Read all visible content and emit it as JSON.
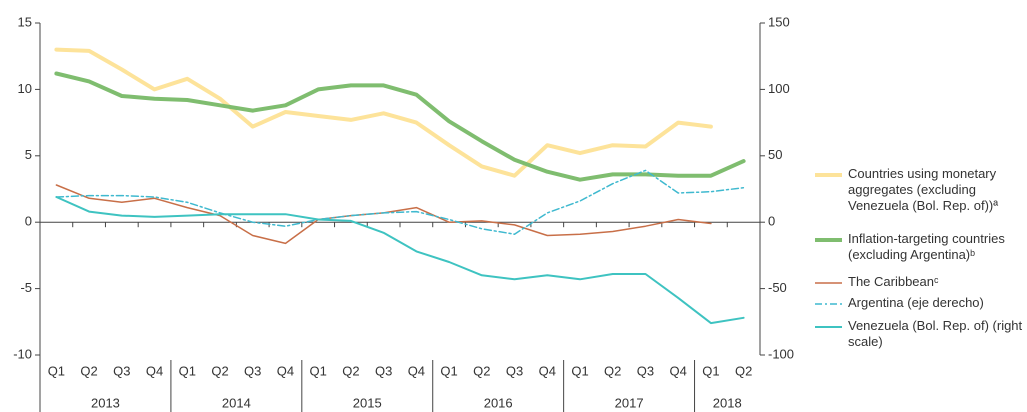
{
  "chart_data": {
    "type": "line",
    "categories": [
      "Q1",
      "Q2",
      "Q3",
      "Q4",
      "Q1",
      "Q2",
      "Q3",
      "Q4",
      "Q1",
      "Q2",
      "Q3",
      "Q4",
      "Q1",
      "Q2",
      "Q3",
      "Q4",
      "Q1",
      "Q2",
      "Q3",
      "Q4",
      "Q1",
      "Q2"
    ],
    "x_groups": [
      "2013",
      null,
      null,
      null,
      "2014",
      null,
      null,
      null,
      "2015",
      null,
      null,
      null,
      "2016",
      null,
      null,
      null,
      "2017",
      null,
      null,
      null,
      "2018",
      null
    ],
    "ylim": [
      -10,
      15
    ],
    "yticks": [
      -10,
      -5,
      0,
      5,
      10,
      15
    ],
    "y2lim": [
      -100,
      150
    ],
    "y2ticks": [
      -100,
      -50,
      0,
      50,
      100,
      150
    ],
    "legend": "right",
    "series": [
      {
        "name": "Countries using monetary aggregates (excluding Venezuela (Bol. Rep. of))ª",
        "color": "#fde39a",
        "width": 4,
        "values": [
          13,
          12.9,
          11.5,
          10,
          10.8,
          9.3,
          7.2,
          8.3,
          8,
          7.7,
          8.2,
          7.5,
          5.8,
          4.2,
          3.5,
          5.8,
          5.2,
          5.8,
          5.7,
          7.5,
          7.2,
          null
        ]
      },
      {
        "name": "Inflation-targeting countries (excluding Argentina)ᵇ",
        "color": "#7fbd6f",
        "width": 4,
        "values": [
          11.2,
          10.6,
          9.5,
          9.3,
          9.2,
          8.8,
          8.4,
          8.8,
          10,
          10.3,
          10.3,
          9.6,
          7.6,
          6.1,
          4.7,
          3.8,
          3.2,
          3.6,
          3.6,
          3.5,
          3.5,
          4.6
        ]
      },
      {
        "name": "The Caribbeanᶜ",
        "color": "#c86f48",
        "width": 1.5,
        "values": [
          2.8,
          1.8,
          1.5,
          1.8,
          1.1,
          0.5,
          -1.0,
          -1.6,
          0.2,
          0.5,
          0.7,
          1.1,
          0.0,
          0.1,
          -0.2,
          -1.0,
          -0.9,
          -0.7,
          -0.3,
          0.2,
          -0.1,
          null
        ]
      },
      {
        "name": "Argentina (eje derecho)",
        "color": "#3fb9cf",
        "width": 1.5,
        "dash": true,
        "axis": "y2",
        "values": [
          19,
          20,
          20,
          19,
          15,
          7,
          0,
          -3,
          2,
          5,
          7,
          8,
          2,
          -5,
          -9,
          7,
          16,
          29,
          39,
          22,
          23,
          26
        ]
      },
      {
        "name": "Venezuela (Bol. Rep. of) (right scale)",
        "color": "#3ec3c1",
        "width": 2,
        "axis": "y2",
        "values": [
          19,
          8,
          5,
          4,
          5,
          6,
          6,
          6,
          2,
          1,
          -8,
          -22,
          -30,
          -40,
          -43,
          -40,
          -43,
          -39,
          -39,
          -57,
          -76,
          -72
        ]
      }
    ]
  }
}
